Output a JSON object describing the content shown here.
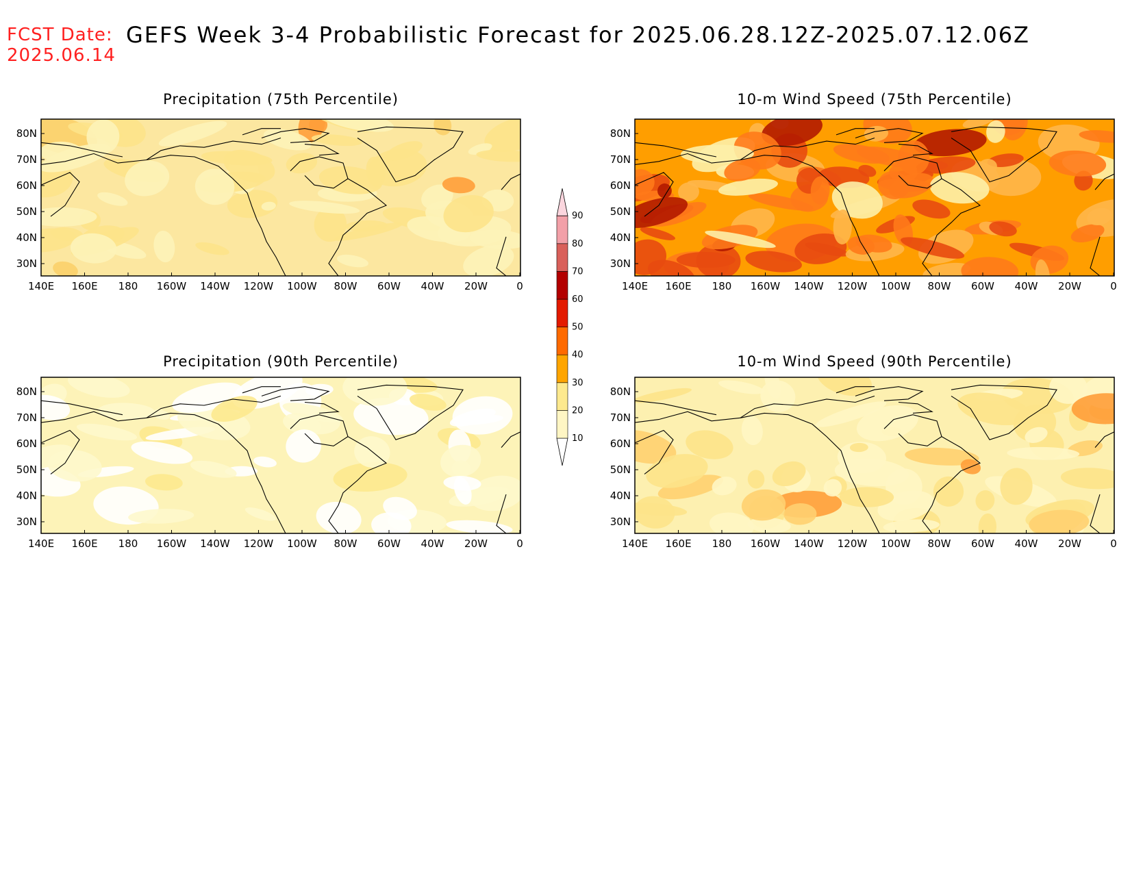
{
  "header": {
    "fcst_label": "FCST Date:",
    "fcst_date": "2025.06.14",
    "title": "GEFS Week 3-4 Probabilistic Forecast for 2025.06.28.12Z-2025.07.12.06Z"
  },
  "panels": [
    {
      "id": "precip75",
      "title": "Precipitation (75th Percentile)",
      "base": "#fce7a0"
    },
    {
      "id": "wind75",
      "title": "10-m Wind Speed (75th Percentile)",
      "base": "#ff9e00"
    },
    {
      "id": "precip90",
      "title": "Precipitation (90th Percentile)",
      "base": "#fdf3b8"
    },
    {
      "id": "wind90",
      "title": "10-m Wind Speed (90th Percentile)",
      "base": "#fdf0b0"
    }
  ],
  "lat_labels": [
    "80N",
    "70N",
    "60N",
    "50N",
    "40N",
    "30N"
  ],
  "lon_labels": [
    "140E",
    "160E",
    "180",
    "160W",
    "140W",
    "120W",
    "100W",
    "80W",
    "60W",
    "40W",
    "20W",
    "0"
  ],
  "colorbar": {
    "levels": [
      "10",
      "20",
      "30",
      "40",
      "50",
      "60",
      "70",
      "80",
      "90"
    ],
    "colors": [
      "#fff6c4",
      "#fde98e",
      "#ffa500",
      "#ff6a00",
      "#e31a00",
      "#b30000",
      "#d9605a",
      "#f2a0a8",
      "#fbd6de"
    ]
  }
}
